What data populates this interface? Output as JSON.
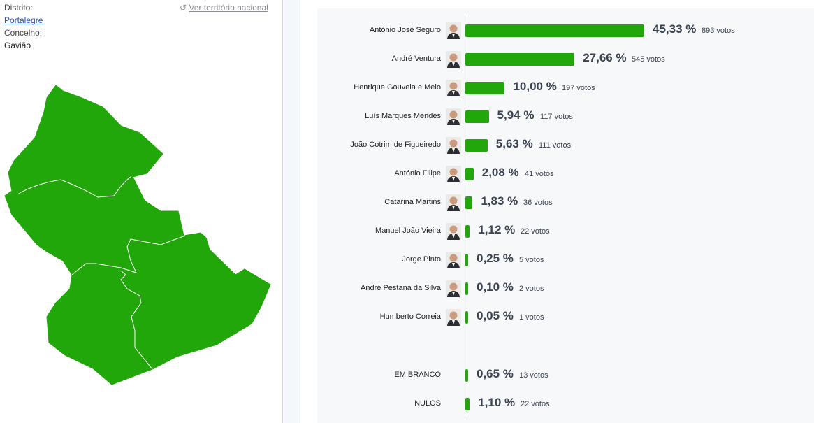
{
  "location": {
    "district_label": "Distrito:",
    "district": "Portalegre",
    "municipality_label": "Concelho:",
    "municipality": "Gavião",
    "national_link": "Ver território nacional"
  },
  "map": {
    "fill_color": "#22a70b",
    "border_color": "#ffffff"
  },
  "colors": {
    "bar": "#22a70b"
  },
  "results": [
    {
      "name": "António José Seguro",
      "pct": 45.33,
      "pct_label": "45,33 %",
      "votes": "893 votos"
    },
    {
      "name": "André Ventura",
      "pct": 27.66,
      "pct_label": "27,66 %",
      "votes": "545 votos"
    },
    {
      "name": "Henrique Gouveia e Melo",
      "pct": 10.0,
      "pct_label": "10,00 %",
      "votes": "197 votos"
    },
    {
      "name": "Luís Marques Mendes",
      "pct": 5.94,
      "pct_label": "5,94 %",
      "votes": "117 votos"
    },
    {
      "name": "João Cotrim de Figueiredo",
      "pct": 5.63,
      "pct_label": "5,63 %",
      "votes": "111 votos"
    },
    {
      "name": "António Filipe",
      "pct": 2.08,
      "pct_label": "2,08 %",
      "votes": "41 votos"
    },
    {
      "name": "Catarina Martins",
      "pct": 1.83,
      "pct_label": "1,83 %",
      "votes": "36 votos"
    },
    {
      "name": "Manuel João Vieira",
      "pct": 1.12,
      "pct_label": "1,12 %",
      "votes": "22 votos"
    },
    {
      "name": "Jorge Pinto",
      "pct": 0.25,
      "pct_label": "0,25 %",
      "votes": "5 votos"
    },
    {
      "name": "André Pestana da Silva",
      "pct": 0.1,
      "pct_label": "0,10 %",
      "votes": "2 votos"
    },
    {
      "name": "Humberto Correia",
      "pct": 0.05,
      "pct_label": "0,05 %",
      "votes": "1 votos"
    }
  ],
  "other": [
    {
      "name": "EM BRANCO",
      "pct": 0.65,
      "pct_label": "0,65 %",
      "votes": "13 votos"
    },
    {
      "name": "NULOS",
      "pct": 1.1,
      "pct_label": "1,10 %",
      "votes": "22 votos"
    }
  ]
}
